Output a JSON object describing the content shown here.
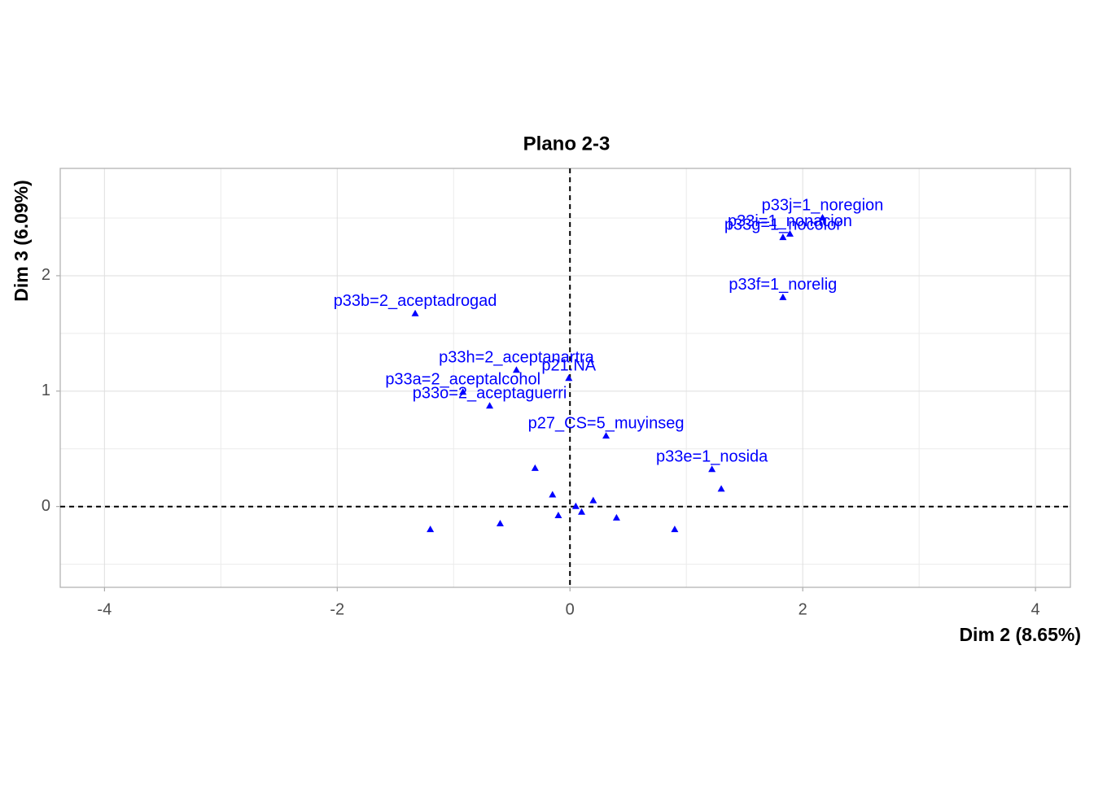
{
  "chart_data": {
    "type": "scatter",
    "title": "Plano 2-3",
    "x_label": "Dim 2 (8.65%)",
    "y_label": "Dim 3 (6.09%)",
    "x": [
      2.17,
      1.89,
      1.83,
      1.83,
      -1.33,
      -0.46,
      -0.01,
      -0.92,
      -0.69,
      0.31,
      1.22,
      -0.3,
      -0.15,
      0.05,
      0.1,
      0.2,
      -0.6,
      -1.2,
      0.4,
      0.9,
      1.3,
      -0.1
    ],
    "y": [
      2.5,
      2.36,
      2.33,
      1.81,
      1.67,
      1.18,
      1.11,
      0.99,
      0.87,
      0.61,
      0.32,
      0.33,
      0.1,
      0.0,
      -0.05,
      0.05,
      -0.15,
      -0.2,
      -0.1,
      -0.2,
      0.15,
      -0.08
    ],
    "labels": [
      "p33j=1_noregion",
      "p33i=1_nonacion",
      "p33g=1_nocolor",
      "p33f=1_norelig",
      "p33b=2_aceptadrogad",
      "p33h=2_aceptanartra",
      "p21.NA",
      "p33a=2_aceptalcohol",
      "p33o=2_aceptaguerri",
      "p27_CS=5_muyinseg",
      "p33e=1_nosida",
      null,
      null,
      null,
      null,
      null,
      null,
      null,
      null,
      null,
      null,
      null
    ],
    "color": "#0000ff",
    "xlim": [
      -4.38,
      4.3
    ],
    "ylim": [
      -0.7,
      2.93
    ],
    "xticks": [
      -4,
      -2,
      0,
      2,
      4
    ],
    "yticks": [
      0,
      1,
      2
    ],
    "x_minor_grid": [
      -3,
      -1,
      1,
      3
    ],
    "y_minor_grid": [
      -0.5,
      0.5,
      1.5,
      2.5
    ],
    "grid": true
  }
}
